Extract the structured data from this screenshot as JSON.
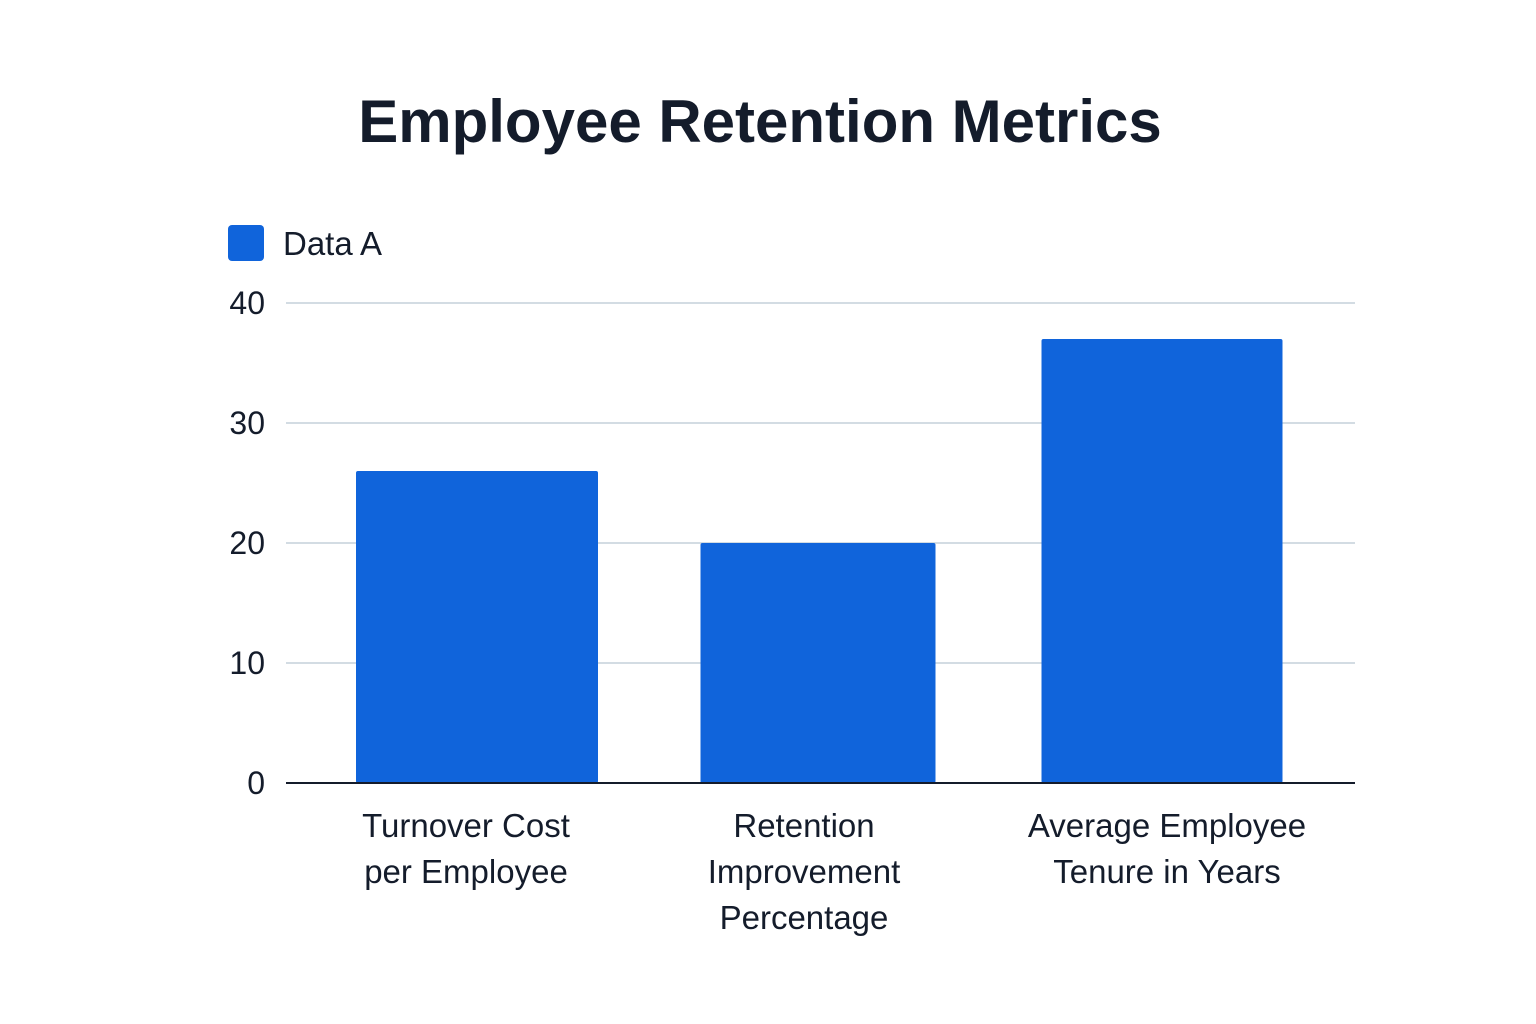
{
  "chart_data": {
    "type": "bar",
    "title": "Employee Retention Metrics",
    "categories": [
      [
        "Turnover Cost",
        "per Employee"
      ],
      [
        "Retention",
        "Improvement",
        "Percentage"
      ],
      [
        "Average Employee",
        "Tenure in Years"
      ]
    ],
    "series": [
      {
        "name": "Data A",
        "values": [
          26,
          20,
          37
        ],
        "color": "#1064db"
      }
    ],
    "yticks": [
      "0",
      "10",
      "20",
      "30",
      "40"
    ],
    "ylim": [
      0,
      40
    ],
    "grid": true,
    "legend_position": "top-left",
    "xlabel": "",
    "ylabel": ""
  }
}
